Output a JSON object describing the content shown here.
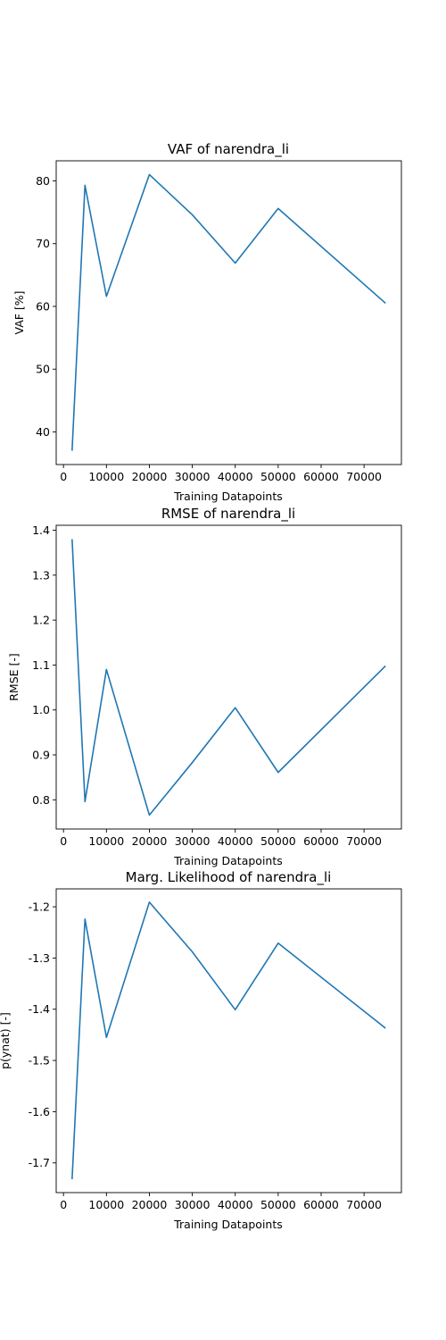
{
  "chart_data": [
    {
      "type": "line",
      "title": "VAF of narendra_li",
      "xlabel": "Training Datapoints",
      "ylabel": "VAF [%]",
      "x": [
        2000,
        5000,
        10000,
        20000,
        30000,
        40000,
        50000,
        75000
      ],
      "series": [
        {
          "values": [
            37.0,
            79.3,
            61.6,
            81.0,
            74.6,
            66.9,
            75.6,
            60.5
          ]
        }
      ],
      "xlim": [
        -1700,
        78700
      ],
      "ylim": [
        34.8,
        83.2
      ],
      "xticks": [
        "0",
        "10000",
        "20000",
        "30000",
        "40000",
        "50000",
        "60000",
        "70000"
      ],
      "yticks": [
        "40",
        "50",
        "60",
        "70",
        "80"
      ],
      "grid": false,
      "color": "#1f77b4"
    },
    {
      "type": "line",
      "title": "RMSE of narendra_li",
      "xlabel": "Training Datapoints",
      "ylabel": "RMSE [-]",
      "x": [
        2000,
        5000,
        10000,
        20000,
        30000,
        40000,
        50000,
        75000
      ],
      "series": [
        {
          "values": [
            1.38,
            0.796,
            1.09,
            0.766,
            0.883,
            1.005,
            0.861,
            1.098
          ]
        }
      ],
      "xlim": [
        -1700,
        78700
      ],
      "ylim": [
        0.735,
        1.411
      ],
      "xticks": [
        "0",
        "10000",
        "20000",
        "30000",
        "40000",
        "50000",
        "60000",
        "70000"
      ],
      "yticks": [
        "0.8",
        "0.9",
        "1.0",
        "1.1",
        "1.2",
        "1.3",
        "1.4"
      ],
      "grid": false,
      "color": "#1f77b4"
    },
    {
      "type": "line",
      "title": "Marg. Likelihood of narendra_li",
      "xlabel": "Training Datapoints",
      "ylabel": "p(ynat) [-]",
      "x": [
        2000,
        5000,
        10000,
        20000,
        30000,
        40000,
        50000,
        75000
      ],
      "series": [
        {
          "values": [
            -1.732,
            -1.224,
            -1.455,
            -1.191,
            -1.288,
            -1.401,
            -1.271,
            -1.437
          ]
        }
      ],
      "xlim": [
        -1700,
        78700
      ],
      "ylim": [
        -1.758,
        -1.165
      ],
      "xticks": [
        "0",
        "10000",
        "20000",
        "30000",
        "40000",
        "50000",
        "60000",
        "70000"
      ],
      "yticks": [
        "-1.7",
        "-1.6",
        "-1.5",
        "-1.4",
        "-1.3",
        "-1.2"
      ],
      "grid": false,
      "color": "#1f77b4"
    }
  ]
}
